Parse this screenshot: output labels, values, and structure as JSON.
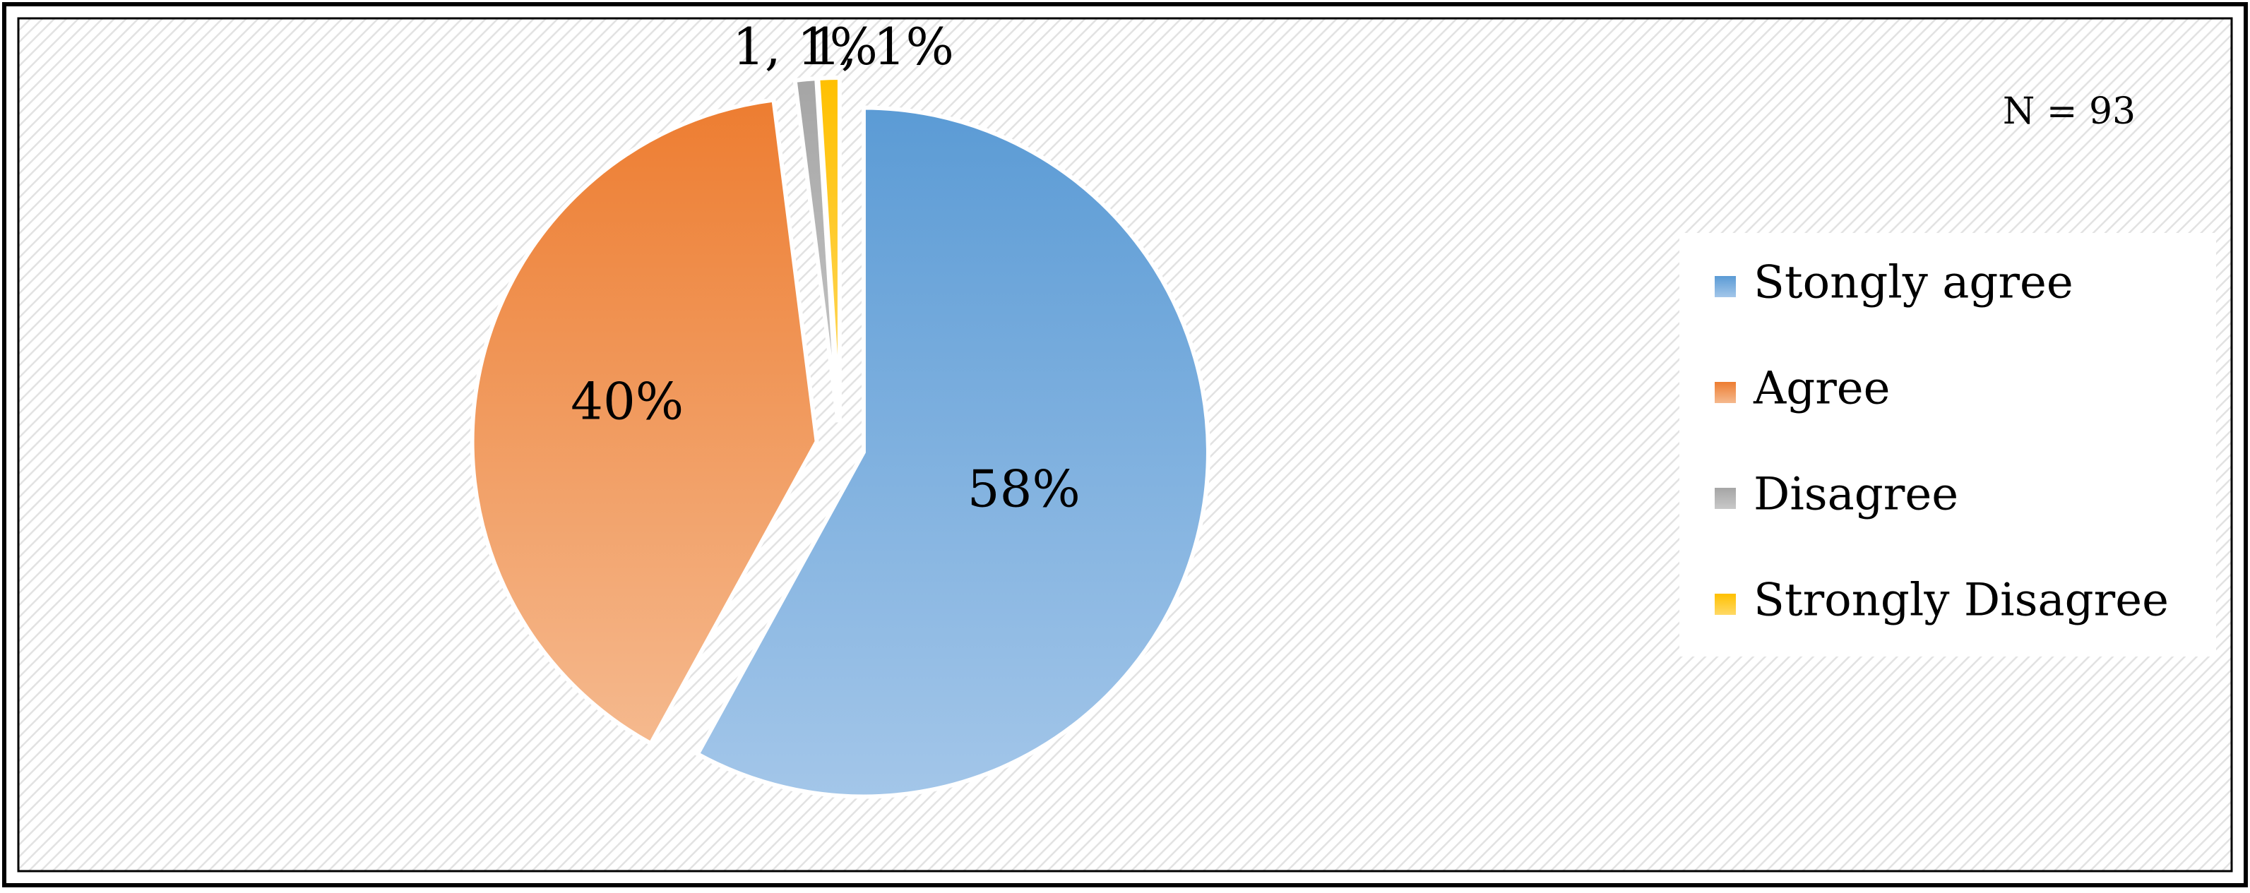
{
  "chart_data": {
    "type": "pie",
    "title": "",
    "annotation": "N = 93",
    "categories": [
      "Stongly agree",
      "Agree",
      "Disagree",
      "Strongly Disagree"
    ],
    "values": [
      58,
      40,
      1,
      1
    ],
    "data_labels": [
      "58%",
      "40%",
      "1, 1%",
      "1, 1%"
    ],
    "colors": [
      "#5b9bd5",
      "#ed7d31",
      "#a5a5a5",
      "#ffc000"
    ],
    "light_colors": [
      "#a3c6e9",
      "#f5b98e",
      "#c8c8c8",
      "#ffd966"
    ],
    "exploded": true,
    "legend_position": "right"
  }
}
